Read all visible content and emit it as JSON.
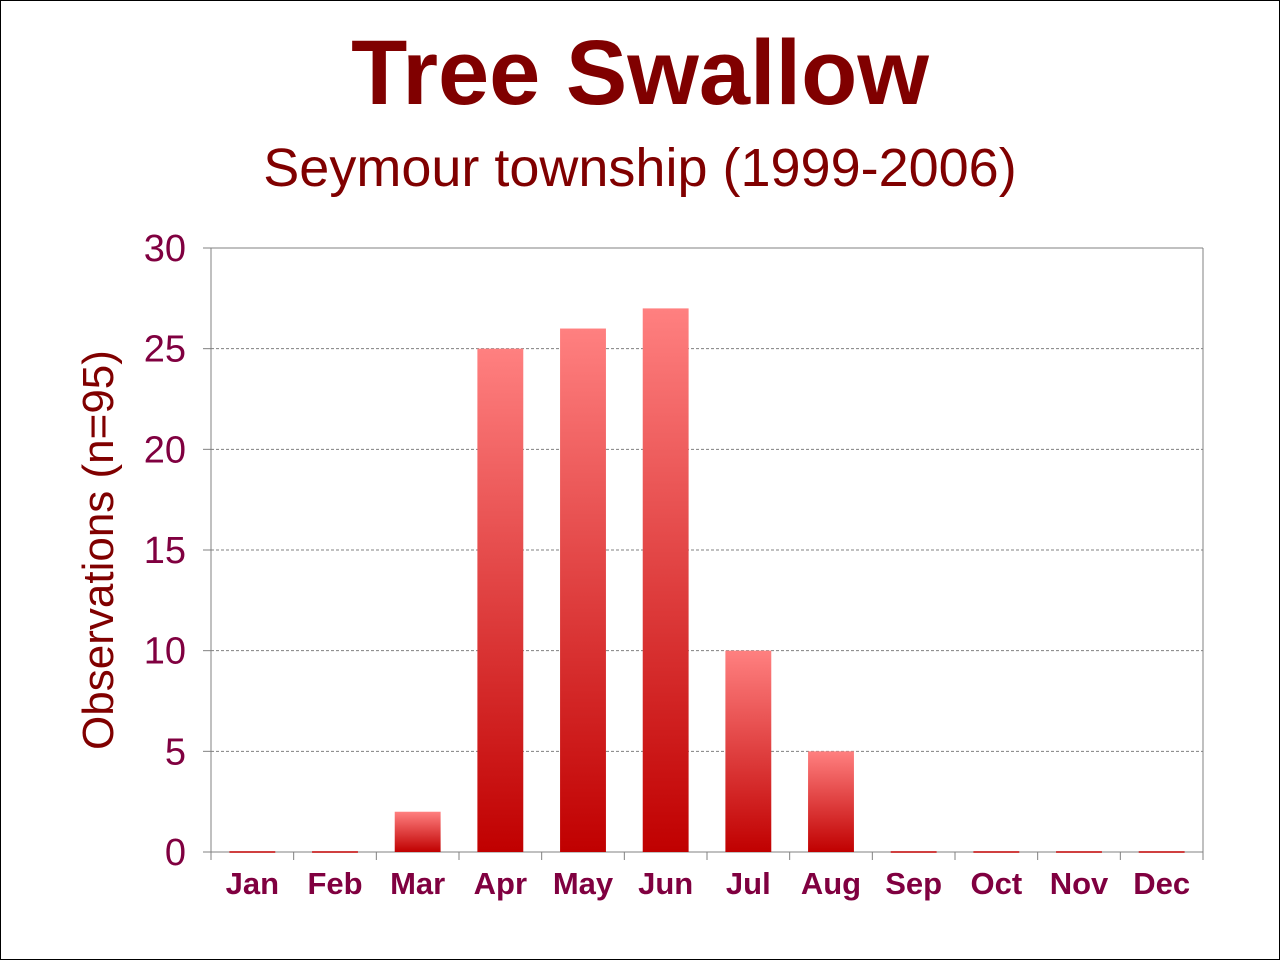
{
  "chart_data": {
    "type": "bar",
    "title": "Tree Swallow",
    "subtitle": "Seymour township (1999-2006)",
    "xlabel": "",
    "ylabel": "Observations (n=95)",
    "categories": [
      "Jan",
      "Feb",
      "Mar",
      "Apr",
      "May",
      "Jun",
      "Jul",
      "Aug",
      "Sep",
      "Oct",
      "Nov",
      "Dec"
    ],
    "values": [
      0,
      0,
      2,
      25,
      26,
      27,
      10,
      5,
      0,
      0,
      0,
      0
    ],
    "ylim": [
      0,
      30
    ],
    "yticks": [
      "0",
      "5",
      "10",
      "15",
      "20",
      "25",
      "30"
    ],
    "grid": true,
    "legend": "none",
    "colors": {
      "bar_top": "#ff8080",
      "bar_bottom": "#c00000",
      "title": "#800000",
      "tick_labels": "#800040",
      "gridline": "#808080"
    }
  }
}
